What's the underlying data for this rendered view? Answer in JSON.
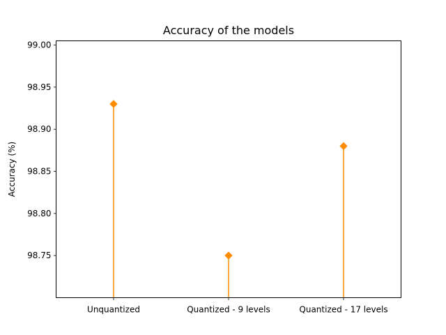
{
  "chart_data": {
    "type": "stem",
    "title": "Accuracy of the models",
    "xlabel": "",
    "ylabel": "Accuracy (%)",
    "categories": [
      "Unquantized",
      "Quantized - 9 levels",
      "Quantized - 17 levels"
    ],
    "values": [
      98.93,
      98.75,
      98.88
    ],
    "ylim": [
      98.7,
      99.005
    ],
    "yticks": [
      98.75,
      98.8,
      98.85,
      98.9,
      98.95,
      99.0
    ],
    "ytick_labels": [
      "98.75",
      "98.80",
      "98.85",
      "98.90",
      "98.95",
      "99.00"
    ],
    "grid": false,
    "marker": "diamond",
    "color": "#ff8c00"
  }
}
